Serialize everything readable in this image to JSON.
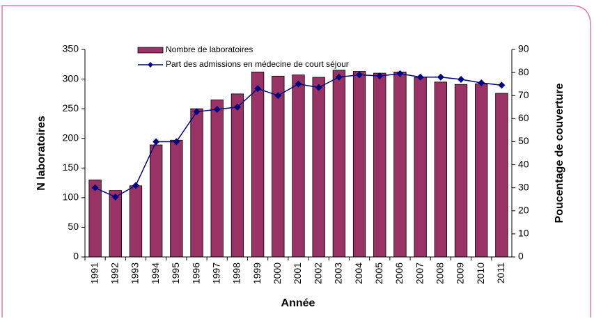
{
  "chart_data": {
    "type": "bar",
    "categories": [
      "1991",
      "1992",
      "1993",
      "1994",
      "1995",
      "1996",
      "1997",
      "1998",
      "1999",
      "2000",
      "2001",
      "2002",
      "2003",
      "2004",
      "2005",
      "2006",
      "2007",
      "2008",
      "2009",
      "2010",
      "2011"
    ],
    "series": [
      {
        "name": "Nombre de laboratoires",
        "type": "bar",
        "color": "#993366",
        "values": [
          130,
          112,
          120,
          189,
          197,
          250,
          265,
          275,
          312,
          305,
          307,
          303,
          315,
          313,
          310,
          312,
          303,
          295,
          291,
          292,
          276
        ]
      },
      {
        "name": "Part des admissions en médecine de court séjour",
        "type": "line",
        "axis": "y2",
        "color": "#000080",
        "values": [
          30,
          26,
          31,
          50,
          50,
          63,
          64,
          65,
          73,
          70,
          75,
          73.5,
          78,
          79,
          78.5,
          79.5,
          78,
          78,
          77,
          75.5,
          74.5
        ]
      }
    ],
    "xlabel": "Année",
    "ylabel": "N laboratoires",
    "y2label": "Poucentage de couverture",
    "ylim": [
      0,
      350
    ],
    "yticks": [
      0,
      50,
      100,
      150,
      200,
      250,
      300,
      350
    ],
    "y2lim": [
      0,
      90
    ],
    "y2ticks": [
      0,
      10,
      20,
      30,
      40,
      50,
      60,
      70,
      80,
      90
    ],
    "legend": "top"
  }
}
